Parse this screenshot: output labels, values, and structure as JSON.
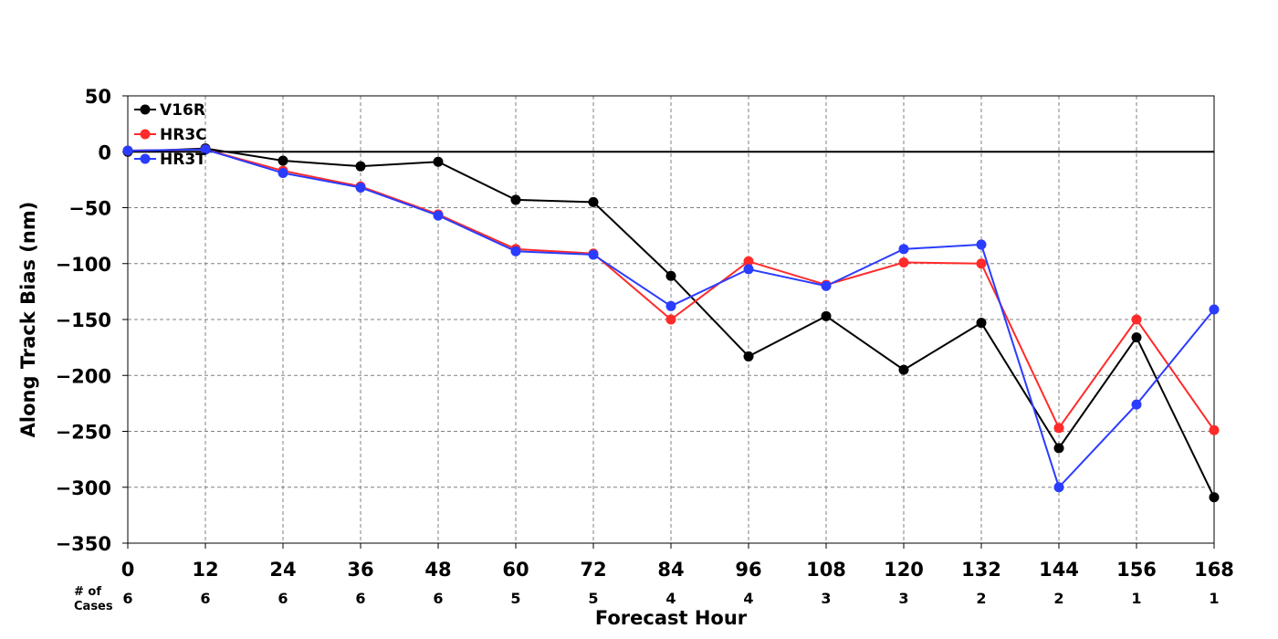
{
  "chart_data": {
    "type": "line",
    "xlabel": "Forecast Hour",
    "ylabel": "Along Track Bias (nm)",
    "x": [
      0,
      12,
      24,
      36,
      48,
      60,
      72,
      84,
      96,
      108,
      120,
      132,
      144,
      156,
      168
    ],
    "xlim": [
      0,
      168
    ],
    "ylim": [
      -350,
      50
    ],
    "yticks": [
      50,
      0,
      -50,
      -100,
      -150,
      -200,
      -250,
      -300,
      -350
    ],
    "grid": true,
    "zero_line": true,
    "legend_position": "top-left",
    "cases_label": "# of\nCases",
    "cases": [
      6,
      6,
      6,
      6,
      6,
      5,
      5,
      4,
      4,
      3,
      3,
      2,
      2,
      1,
      1
    ],
    "series": [
      {
        "name": "V16R",
        "color": "#000000",
        "values": [
          0,
          3,
          -8,
          -13,
          -9,
          -43,
          -45,
          -111,
          -183,
          -147,
          -195,
          -153,
          -265,
          -166,
          -309
        ]
      },
      {
        "name": "HR3C",
        "color": "#ff2a2a",
        "values": [
          1,
          2,
          -17,
          -31,
          -56,
          -87,
          -91,
          -150,
          -98,
          -119,
          -99,
          -100,
          -247,
          -150,
          -249
        ]
      },
      {
        "name": "HR3T",
        "color": "#2a3cff",
        "values": [
          1,
          2,
          -19,
          -32,
          -57,
          -89,
          -92,
          -138,
          -105,
          -120,
          -87,
          -83,
          -300,
          -226,
          -141
        ]
      }
    ]
  }
}
